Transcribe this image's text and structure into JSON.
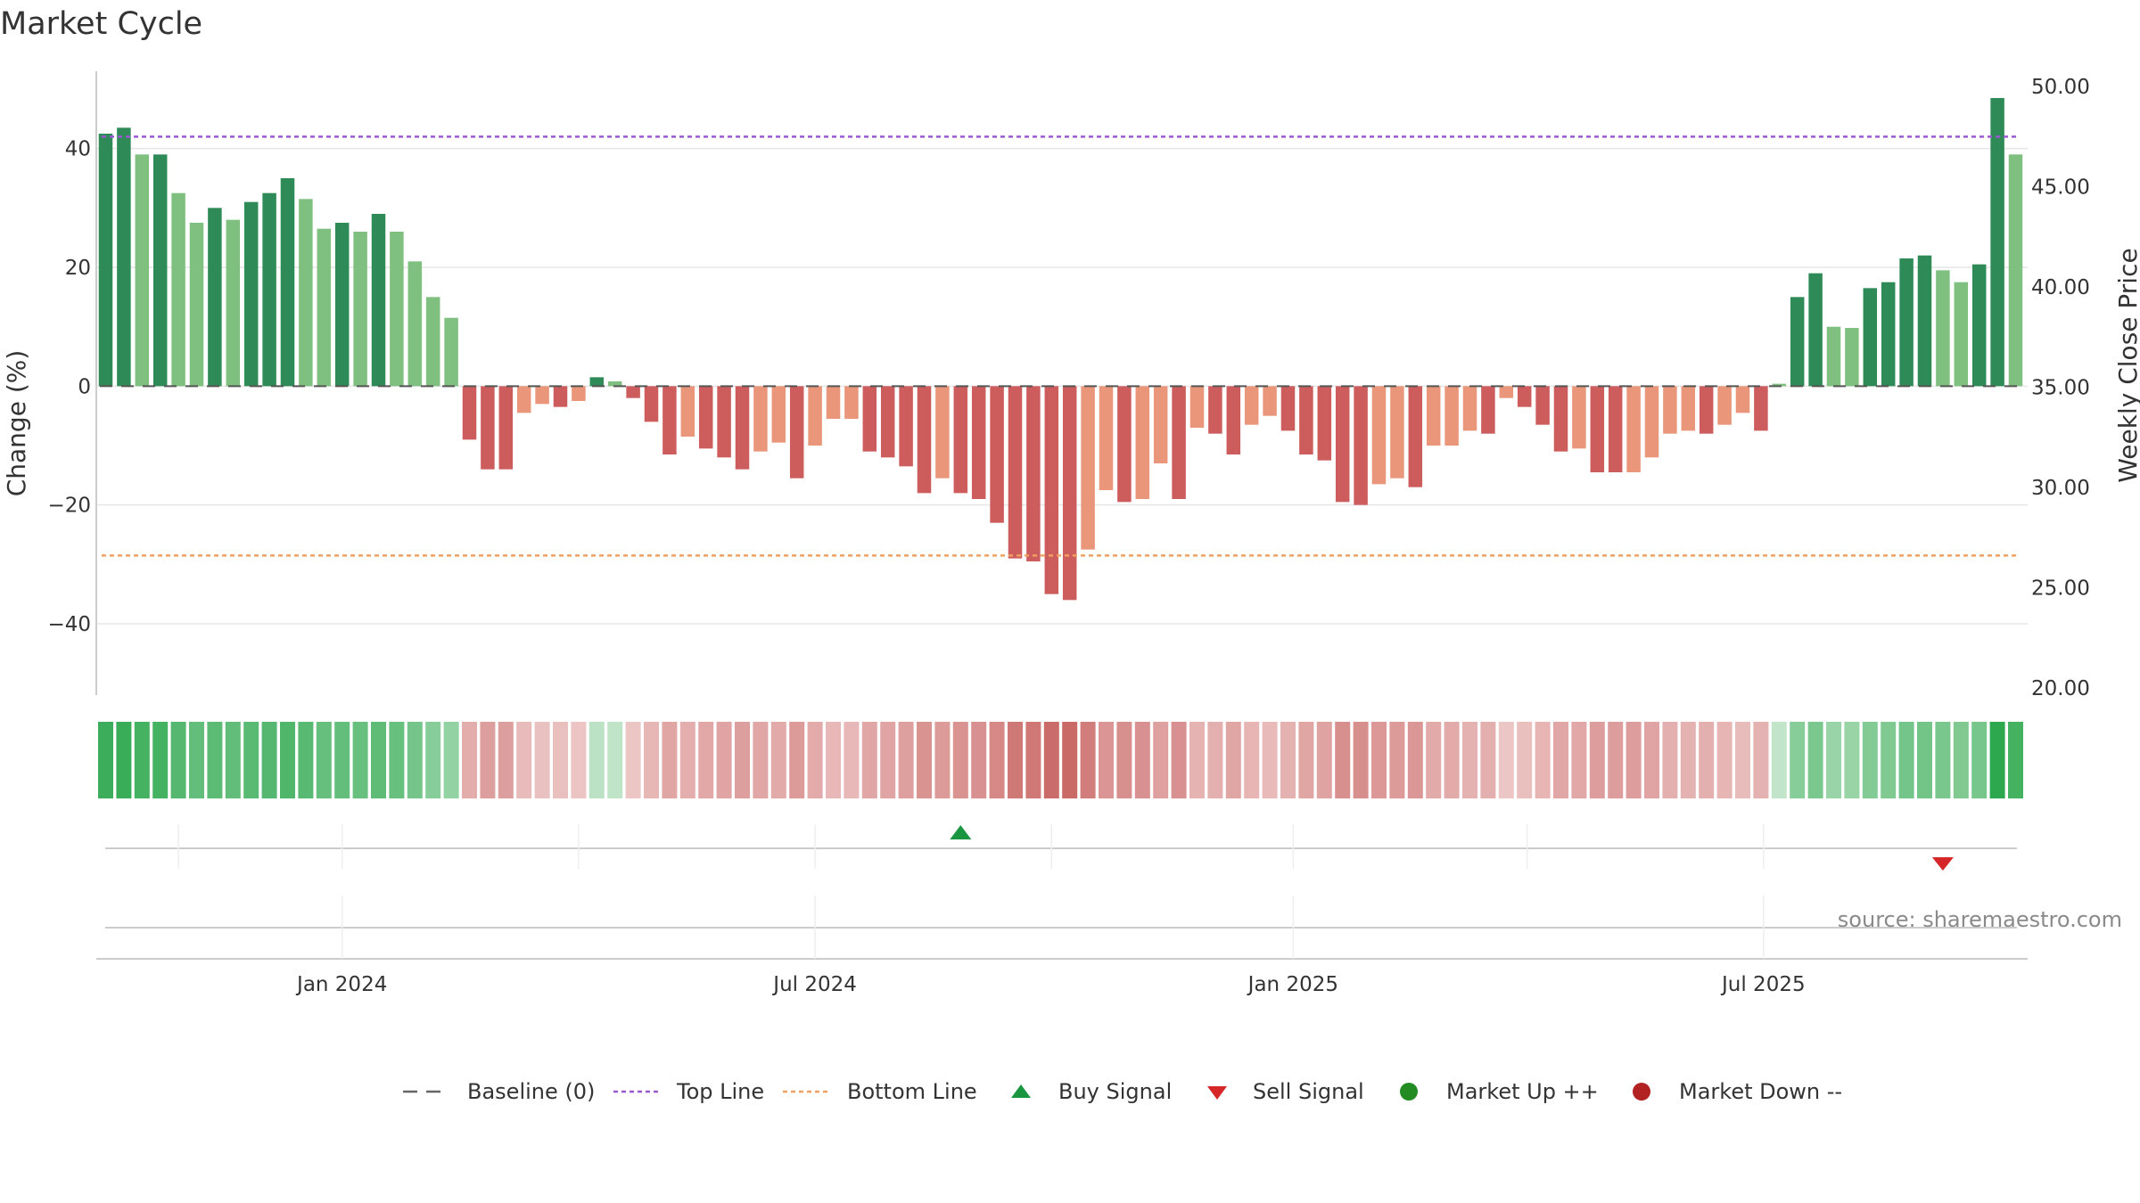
{
  "title": "Market Cycle",
  "source": "source: sharemaestro.com",
  "colors": {
    "up_dark": "#2e8b57",
    "up_light": "#7fbf7f",
    "down_dark": "#cd5c5c",
    "down_light": "#e9967a",
    "top_line": "#9b59d0",
    "bottom_line": "#f0a060",
    "baseline": "#555555",
    "buy": "#1a9641",
    "sell": "#d62728",
    "market_up": "#228b22",
    "market_down": "#b22222",
    "grid": "#e6e6e6"
  },
  "chart_data": {
    "type": "bar",
    "ylabel": "Change (%)",
    "y2label": "Weekly Close Price",
    "ylim": [
      -52,
      53
    ],
    "y2lim": [
      20.0,
      50.0
    ],
    "y_ticks": [
      "−40",
      "−20",
      "0",
      "20",
      "40"
    ],
    "y2_ticks": [
      "20.00",
      "25.00",
      "30.00",
      "35.00",
      "40.00",
      "45.00",
      "50.00"
    ],
    "x_ticks": [
      "Jan 2024",
      "Jul 2024",
      "Jan 2025",
      "Jul 2025"
    ],
    "top_line": 42,
    "bottom_line": -28.5,
    "start_date": "2023-10-02",
    "week_count": 106,
    "values": [
      42.5,
      43.5,
      39,
      39,
      32.5,
      27.5,
      30,
      28,
      31,
      32.5,
      35,
      31.5,
      26.5,
      27.5,
      26,
      29,
      26,
      21,
      15,
      11.5,
      -9,
      -14,
      -14,
      -4.5,
      -3,
      -3.5,
      -2.5,
      1.5,
      0.8,
      -2,
      -6,
      -11.5,
      -8.5,
      -10.5,
      -12,
      -14,
      -11,
      -9.5,
      -15.5,
      -10,
      -5.5,
      -5.5,
      -11,
      -12,
      -13.5,
      -18,
      -15.5,
      -18,
      -19,
      -23,
      -29,
      -29.5,
      -35,
      -36,
      -27.5,
      -17.5,
      -19.5,
      -19,
      -13,
      -19,
      -7,
      -8,
      -11.5,
      -6.5,
      -5,
      -7.5,
      -11.5,
      -12.5,
      -19.5,
      -20,
      -16.5,
      -15.5,
      -17,
      -10,
      -10,
      -7.5,
      -8,
      -2,
      -3.5,
      -6.5,
      -11,
      -10.5,
      -14.5,
      -14.5,
      -14.5,
      -12,
      -8,
      -7.5,
      -8,
      -6.5,
      -4.5,
      -7.5,
      0.4,
      15,
      19,
      10,
      9.8,
      16.5,
      17.5,
      21.5,
      22,
      19.5,
      17.5,
      20.5,
      48.5,
      39
    ],
    "shades": [
      1,
      1,
      0,
      1,
      0,
      0,
      1,
      0,
      1,
      1,
      1,
      0,
      0,
      1,
      0,
      1,
      0,
      0,
      0,
      0,
      1,
      1,
      1,
      0,
      0,
      1,
      0,
      1,
      0,
      1,
      1,
      1,
      0,
      1,
      1,
      1,
      0,
      0,
      1,
      0,
      0,
      0,
      1,
      1,
      1,
      1,
      0,
      1,
      1,
      1,
      1,
      1,
      1,
      1,
      0,
      0,
      1,
      0,
      0,
      1,
      0,
      1,
      1,
      0,
      0,
      1,
      1,
      1,
      1,
      1,
      0,
      0,
      1,
      0,
      0,
      0,
      1,
      0,
      1,
      1,
      1,
      0,
      1,
      1,
      0,
      0,
      0,
      0,
      1,
      0,
      0,
      1,
      0,
      1,
      1,
      0,
      0,
      1,
      1,
      1,
      1,
      0,
      0,
      1,
      1,
      0
    ],
    "buy_signal_date": "2024-08-26",
    "sell_signal_date": "2025-09-08"
  },
  "legend": [
    {
      "label": "Baseline (0)",
      "icon": "dashed-line"
    },
    {
      "label": "Top Line",
      "icon": "dotted-line-purple"
    },
    {
      "label": "Bottom Line",
      "icon": "dotted-line-orange"
    },
    {
      "label": "Buy Signal",
      "icon": "triangle-up"
    },
    {
      "label": "Sell Signal",
      "icon": "triangle-down"
    },
    {
      "label": "Market Up ++",
      "icon": "circle-green"
    },
    {
      "label": "Market Down --",
      "icon": "circle-red"
    }
  ]
}
